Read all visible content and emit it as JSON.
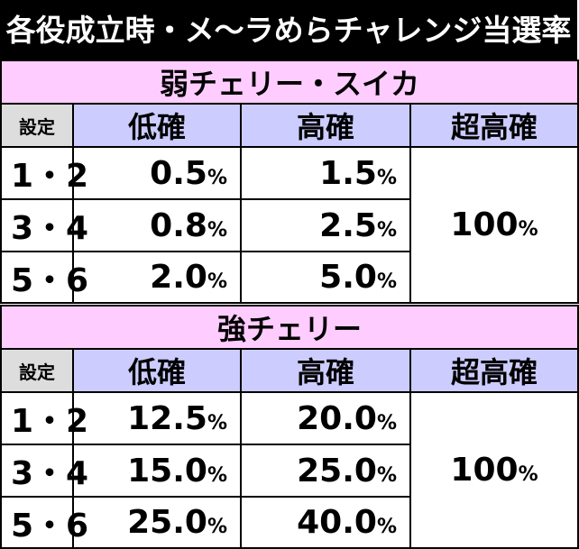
{
  "title": "各役成立時・メ〜ラめらチャレンジ当選率",
  "tables": [
    {
      "section": "弱チェリー・スイカ",
      "headers": {
        "setting": "設定",
        "low": "低確",
        "high": "高確",
        "super": "超高確"
      },
      "rows": [
        {
          "setting": "1・2",
          "low": "0.5",
          "high": "1.5"
        },
        {
          "setting": "3・4",
          "low": "0.8",
          "high": "2.5"
        },
        {
          "setting": "5・6",
          "low": "2.0",
          "high": "5.0"
        }
      ],
      "super_value": "100",
      "unit": "%"
    },
    {
      "section": "強チェリー",
      "headers": {
        "setting": "設定",
        "low": "低確",
        "high": "高確",
        "super": "超高確"
      },
      "rows": [
        {
          "setting": "1・2",
          "low": "12.5",
          "high": "20.0"
        },
        {
          "setting": "3・4",
          "low": "15.0",
          "high": "25.0"
        },
        {
          "setting": "5・6",
          "low": "25.0",
          "high": "40.0"
        }
      ],
      "super_value": "100",
      "unit": "%"
    }
  ]
}
